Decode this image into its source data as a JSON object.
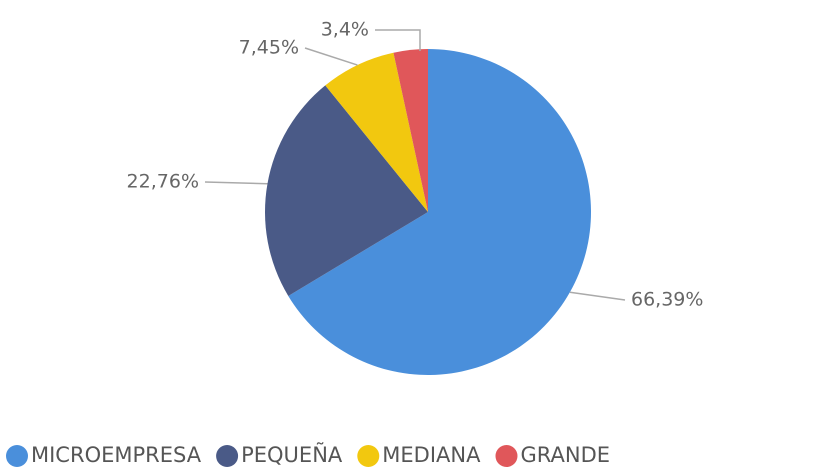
{
  "chart_data": {
    "type": "pie",
    "categories": [
      "MICROEMPRESA",
      "PEQUEÑA",
      "MEDIANA",
      "GRANDE"
    ],
    "values": [
      66.39,
      22.76,
      7.45,
      3.4
    ],
    "value_labels": [
      "66,39%",
      "22,76%",
      "7,45%",
      "3,4%"
    ],
    "colors": [
      "#4a8fdb",
      "#4a5a87",
      "#f2c80f",
      "#e0575a"
    ]
  }
}
